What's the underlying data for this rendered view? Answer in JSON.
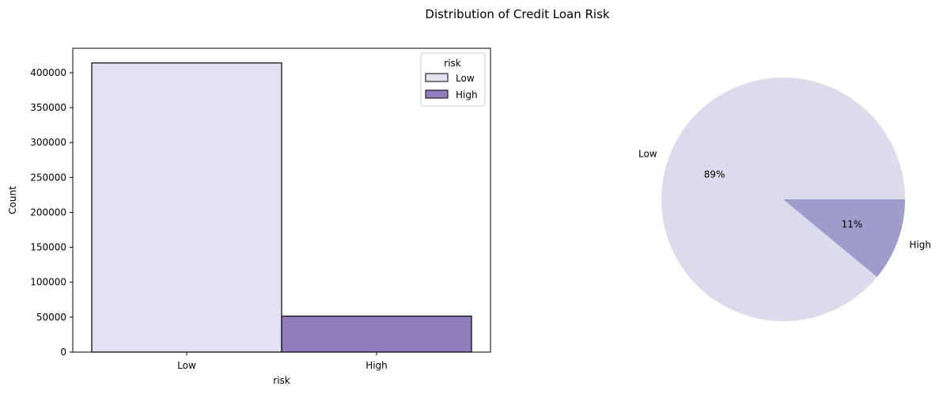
{
  "figure": {
    "title": "Distribution of Credit Loan Risk"
  },
  "colors": {
    "low_bar": "#e1e1f0",
    "high_bar": "#917dbb",
    "pie_low": "#dcdbeb",
    "pie_high": "#9f9bcb",
    "edge": "#000000"
  },
  "chart_data": [
    {
      "type": "bar",
      "categories": [
        "Low",
        "High"
      ],
      "values": [
        414000,
        51500
      ],
      "xlabel": "risk",
      "ylabel": "Count",
      "ylim": [
        0,
        435000
      ],
      "yticks": [
        0,
        50000,
        100000,
        150000,
        200000,
        250000,
        300000,
        350000,
        400000
      ],
      "grid": false,
      "legend": {
        "title": "risk",
        "placement": "upper-right",
        "entries": [
          "Low",
          "High"
        ]
      }
    },
    {
      "type": "pie",
      "labels": [
        "Low",
        "High"
      ],
      "values": [
        89,
        11
      ],
      "autopct": [
        "89%",
        "11%"
      ]
    }
  ]
}
